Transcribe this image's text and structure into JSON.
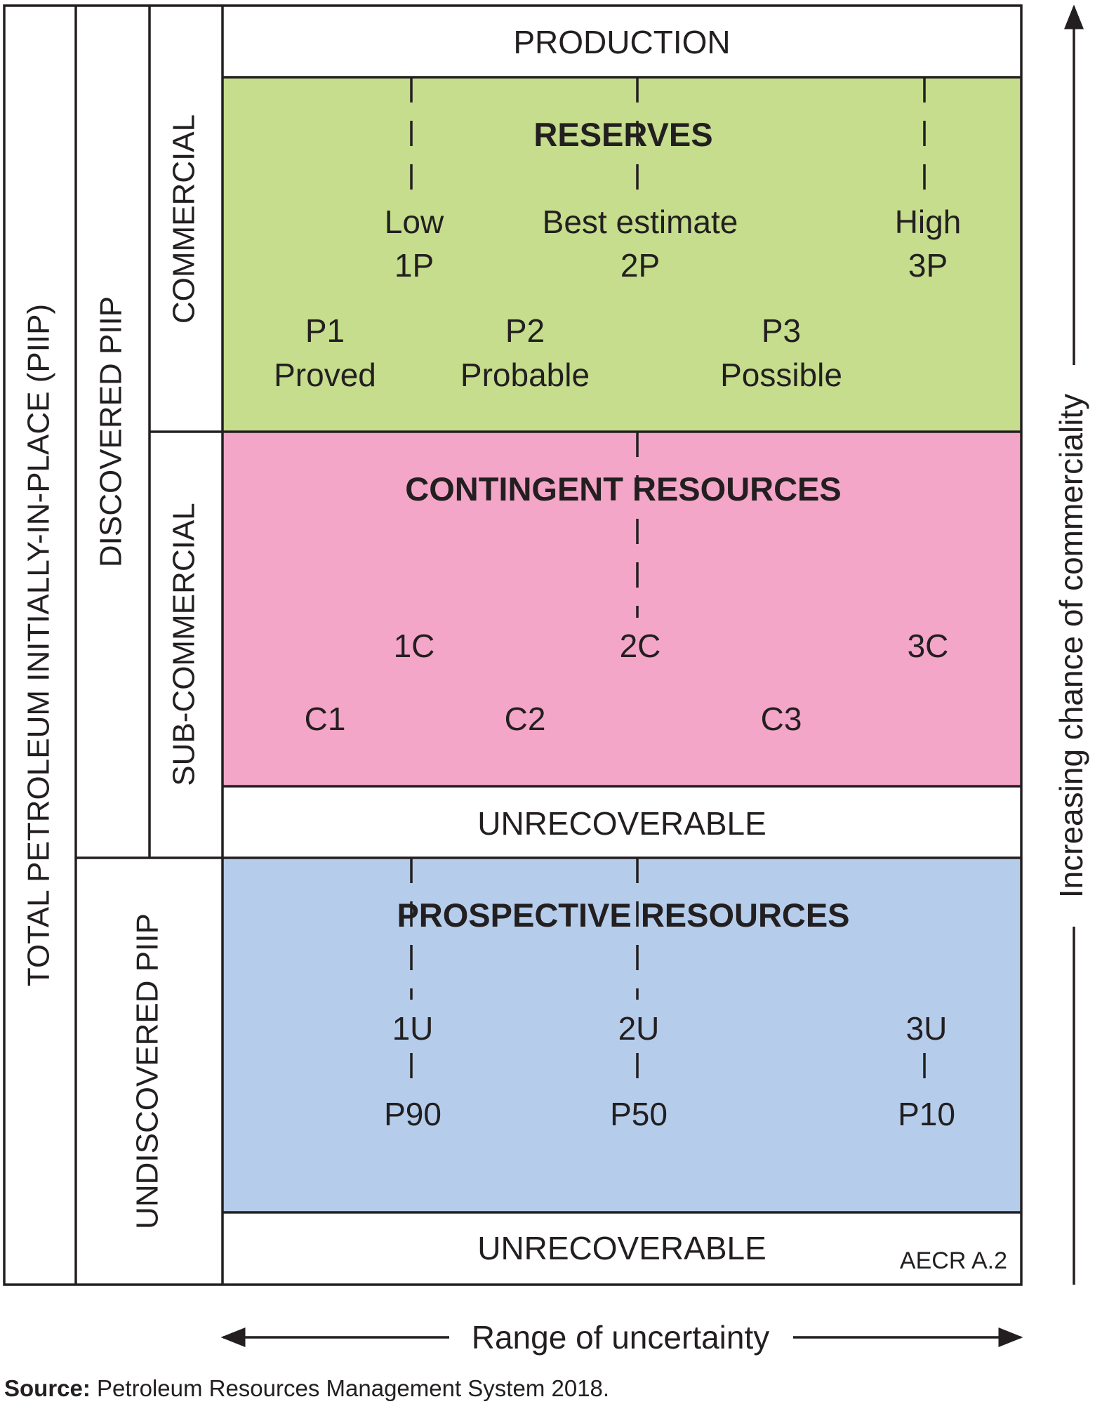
{
  "diagram": {
    "colors": {
      "reserves": "#c5dd8c",
      "contingent": "#f4a6c8",
      "prospective": "#b5cdeb",
      "line": "#231f20",
      "background": "#ffffff"
    },
    "left_labels": {
      "total": "TOTAL PETROLEUM INITIALLY-IN-PLACE (PIIP)",
      "discovered": "DISCOVERED PIIP",
      "undiscovered": "UNDISCOVERED PIIP",
      "commercial": "COMMERCIAL",
      "sub_commercial": "SUB-COMMERCIAL"
    },
    "production": "PRODUCTION",
    "reserves": {
      "title": "RESERVES",
      "estimates": [
        {
          "line1": "Low",
          "line2": "1P"
        },
        {
          "line1": "Best estimate",
          "line2": "2P"
        },
        {
          "line1": "High",
          "line2": "3P"
        }
      ],
      "categories": [
        {
          "code": "P1",
          "name": "Proved"
        },
        {
          "code": "P2",
          "name": "Probable"
        },
        {
          "code": "P3",
          "name": "Possible"
        }
      ]
    },
    "contingent": {
      "title": "CONTINGENT RESOURCES",
      "estimates": [
        "1C",
        "2C",
        "3C"
      ],
      "categories": [
        "C1",
        "C2",
        "C3"
      ]
    },
    "unrecoverable_1": "UNRECOVERABLE",
    "prospective": {
      "title": "PROSPECTIVE RESOURCES",
      "estimates": [
        "1U",
        "2U",
        "3U"
      ],
      "probabilities": [
        "P90",
        "P50",
        "P10"
      ]
    },
    "unrecoverable_2": "UNRECOVERABLE",
    "code": "AECR A.2",
    "x_axis": "Range of uncertainty",
    "y_axis": "Increasing chance of commerciality"
  },
  "source": {
    "label": "Source:",
    "text": " Petroleum Resources Management System 2018."
  }
}
